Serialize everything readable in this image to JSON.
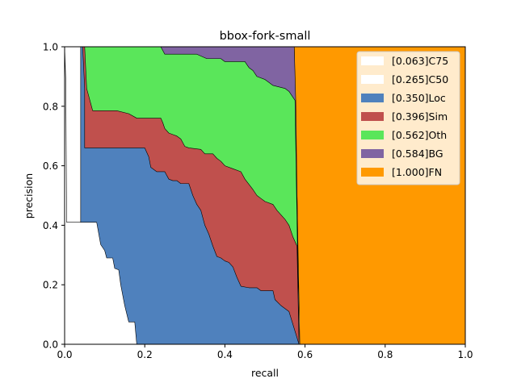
{
  "chart_data": {
    "type": "area",
    "title": "bbox-fork-small",
    "xlabel": "recall",
    "ylabel": "precision",
    "xlim": [
      0,
      1
    ],
    "ylim": [
      0,
      1
    ],
    "xticks": [
      "0.0",
      "0.2",
      "0.4",
      "0.6",
      "0.8",
      "1.0"
    ],
    "yticks": [
      "0.0",
      "0.2",
      "0.4",
      "0.6",
      "0.8",
      "1.0"
    ],
    "grid": false,
    "legend_position": "top-right",
    "series": [
      {
        "name": "[1.000]FN",
        "color": "#ff9900",
        "points": [
          [
            0.573,
            1.0
          ],
          [
            0.585,
            1.0
          ],
          [
            1.0,
            1.0
          ],
          [
            1.0,
            0.0
          ],
          [
            0.587,
            0.0
          ]
        ]
      },
      {
        "name": "[0.584]BG",
        "color": "#8064a2",
        "points": [
          [
            0.0,
            1.0
          ],
          [
            0.573,
            1.0
          ],
          [
            0.577,
            0.81
          ],
          [
            0.585,
            0.0
          ],
          [
            0.0,
            0.0
          ]
        ]
      },
      {
        "name": "[0.562]Oth",
        "color": "#5ae65a",
        "points": [
          [
            0.0,
            1.0
          ],
          [
            0.24,
            1.0
          ],
          [
            0.25,
            0.975
          ],
          [
            0.33,
            0.975
          ],
          [
            0.355,
            0.96
          ],
          [
            0.39,
            0.96
          ],
          [
            0.4,
            0.95
          ],
          [
            0.45,
            0.95
          ],
          [
            0.46,
            0.93
          ],
          [
            0.47,
            0.92
          ],
          [
            0.48,
            0.9
          ],
          [
            0.5,
            0.89
          ],
          [
            0.51,
            0.88
          ],
          [
            0.52,
            0.87
          ],
          [
            0.55,
            0.86
          ],
          [
            0.56,
            0.85
          ],
          [
            0.575,
            0.82
          ],
          [
            0.585,
            0.0
          ],
          [
            0.0,
            0.0
          ]
        ]
      },
      {
        "name": "[0.396]Sim",
        "color": "#c0504d",
        "points": [
          [
            0.0,
            1.0
          ],
          [
            0.05,
            1.0
          ],
          [
            0.055,
            0.86
          ],
          [
            0.065,
            0.81
          ],
          [
            0.07,
            0.785
          ],
          [
            0.13,
            0.785
          ],
          [
            0.16,
            0.775
          ],
          [
            0.18,
            0.76
          ],
          [
            0.24,
            0.76
          ],
          [
            0.245,
            0.745
          ],
          [
            0.25,
            0.725
          ],
          [
            0.26,
            0.71
          ],
          [
            0.27,
            0.705
          ],
          [
            0.28,
            0.7
          ],
          [
            0.29,
            0.69
          ],
          [
            0.3,
            0.665
          ],
          [
            0.31,
            0.66
          ],
          [
            0.34,
            0.655
          ],
          [
            0.35,
            0.64
          ],
          [
            0.37,
            0.64
          ],
          [
            0.38,
            0.625
          ],
          [
            0.39,
            0.615
          ],
          [
            0.4,
            0.6
          ],
          [
            0.42,
            0.59
          ],
          [
            0.44,
            0.58
          ],
          [
            0.45,
            0.555
          ],
          [
            0.47,
            0.52
          ],
          [
            0.48,
            0.5
          ],
          [
            0.49,
            0.49
          ],
          [
            0.5,
            0.48
          ],
          [
            0.52,
            0.47
          ],
          [
            0.53,
            0.45
          ],
          [
            0.55,
            0.42
          ],
          [
            0.56,
            0.4
          ],
          [
            0.57,
            0.36
          ],
          [
            0.58,
            0.33
          ],
          [
            0.585,
            0.0
          ],
          [
            0.0,
            0.0
          ]
        ]
      },
      {
        "name": "[0.350]Loc",
        "color": "#4f81bd",
        "points": [
          [
            0.0,
            1.0
          ],
          [
            0.045,
            1.0
          ],
          [
            0.05,
            0.86
          ],
          [
            0.05,
            0.66
          ],
          [
            0.2,
            0.66
          ],
          [
            0.21,
            0.63
          ],
          [
            0.215,
            0.595
          ],
          [
            0.23,
            0.58
          ],
          [
            0.25,
            0.58
          ],
          [
            0.26,
            0.555
          ],
          [
            0.27,
            0.55
          ],
          [
            0.28,
            0.55
          ],
          [
            0.29,
            0.54
          ],
          [
            0.31,
            0.54
          ],
          [
            0.32,
            0.5
          ],
          [
            0.33,
            0.47
          ],
          [
            0.34,
            0.45
          ],
          [
            0.35,
            0.4
          ],
          [
            0.36,
            0.37
          ],
          [
            0.37,
            0.33
          ],
          [
            0.38,
            0.295
          ],
          [
            0.39,
            0.29
          ],
          [
            0.4,
            0.28
          ],
          [
            0.41,
            0.275
          ],
          [
            0.42,
            0.26
          ],
          [
            0.43,
            0.225
          ],
          [
            0.44,
            0.195
          ],
          [
            0.46,
            0.19
          ],
          [
            0.48,
            0.19
          ],
          [
            0.49,
            0.18
          ],
          [
            0.5,
            0.18
          ],
          [
            0.51,
            0.18
          ],
          [
            0.52,
            0.18
          ],
          [
            0.525,
            0.15
          ],
          [
            0.54,
            0.13
          ],
          [
            0.56,
            0.11
          ],
          [
            0.585,
            0.0
          ],
          [
            0.0,
            0.0
          ]
        ]
      },
      {
        "name": "[0.265]C50",
        "color": "#ffffff",
        "points": [
          [
            0.0,
            1.0
          ],
          [
            0.04,
            1.0
          ],
          [
            0.04,
            0.0
          ],
          [
            0.0,
            0.0
          ]
        ]
      },
      {
        "name": "[0.063]C75",
        "color": "#ffffff",
        "points": [
          [
            0.0,
            1.0
          ],
          [
            0.003,
            0.88
          ],
          [
            0.005,
            0.41
          ],
          [
            0.08,
            0.41
          ],
          [
            0.09,
            0.335
          ],
          [
            0.1,
            0.315
          ],
          [
            0.105,
            0.29
          ],
          [
            0.12,
            0.29
          ],
          [
            0.125,
            0.255
          ],
          [
            0.135,
            0.25
          ],
          [
            0.14,
            0.2
          ],
          [
            0.15,
            0.13
          ],
          [
            0.16,
            0.075
          ],
          [
            0.175,
            0.075
          ],
          [
            0.18,
            0.0
          ],
          [
            0.0,
            0.0
          ]
        ]
      }
    ]
  }
}
